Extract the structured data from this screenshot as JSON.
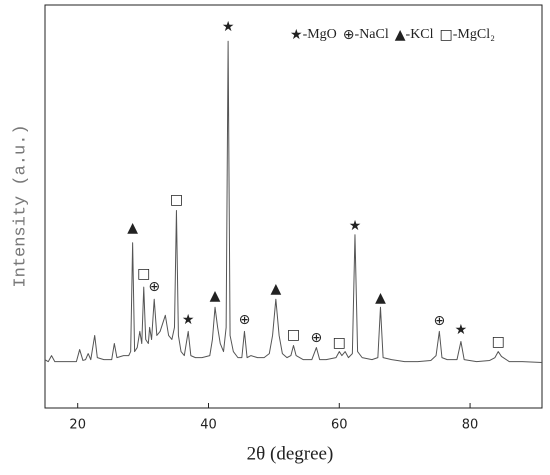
{
  "chart_data": {
    "type": "line",
    "xlabel": "2θ (degree)",
    "ylabel": "Intensity (a.u.)",
    "xlim": [
      15,
      91
    ],
    "ylim": [
      0,
      100
    ],
    "xticks": [
      20,
      40,
      60,
      80
    ],
    "series": [
      {
        "color": "#555555",
        "x": [
          15,
          15.5,
          16,
          16.5,
          18,
          19.8,
          20.3,
          20.8,
          21.2,
          21.6,
          22,
          22.6,
          23,
          24,
          25.2,
          25.6,
          26,
          27,
          27.8,
          28.1,
          28.4,
          28.7,
          29.1,
          29.5,
          29.8,
          30.1,
          30.4,
          30.8,
          31,
          31.3,
          31.7,
          32.1,
          32.6,
          33.4,
          33.9,
          34.4,
          34.8,
          35.1,
          35.4,
          35.8,
          36.3,
          36.9,
          37.3,
          38,
          39,
          40.2,
          40.6,
          41,
          41.4,
          41.8,
          42.3,
          42.7,
          43,
          43.3,
          43.8,
          44.5,
          45.1,
          45.5,
          45.9,
          46.5,
          47.5,
          48.5,
          49.3,
          49.8,
          50.3,
          50.8,
          51.3,
          52,
          52.6,
          53,
          53.4,
          54.5,
          55.8,
          56.5,
          57,
          58,
          59.5,
          60,
          60.4,
          60.9,
          61.4,
          62,
          62.4,
          62.8,
          63.5,
          65,
          65.9,
          66.3,
          66.7,
          68,
          70,
          72,
          74,
          74.8,
          75.3,
          75.7,
          76.5,
          78,
          78.6,
          79.1,
          81,
          83,
          83.8,
          84.3,
          84.8,
          86,
          88,
          91
        ],
        "values": [
          12,
          11.5,
          13,
          11.5,
          11.5,
          11.5,
          14.5,
          11.8,
          12,
          13.5,
          12,
          18,
          12.5,
          12,
          12,
          16,
          12.5,
          13,
          13,
          14,
          41,
          14,
          15,
          19,
          16,
          30,
          17,
          16,
          20,
          17,
          27,
          18,
          19,
          23,
          18,
          17,
          20,
          49,
          18,
          14,
          13,
          19,
          13,
          12.5,
          12.5,
          13,
          17,
          25,
          20,
          16,
          14,
          20,
          91,
          18,
          14,
          12.5,
          12.5,
          19,
          12.5,
          13,
          12.5,
          12.5,
          13.5,
          18,
          27,
          18,
          13.5,
          12.5,
          13,
          15.5,
          13,
          12,
          12,
          15,
          12,
          12,
          12.5,
          14,
          13,
          14,
          12.5,
          13.5,
          43,
          14,
          12.5,
          12,
          12.5,
          25,
          12.5,
          12,
          11.5,
          11.5,
          11.8,
          13,
          19,
          12.5,
          12,
          12,
          16.5,
          12,
          11.5,
          11.8,
          12.5,
          14,
          12.8,
          11.5,
          11.5,
          11.3
        ]
      }
    ],
    "annotations": [
      {
        "text": "▲",
        "x": 28.4,
        "y": 44.7
      },
      {
        "text": "□",
        "x": 30.1,
        "y": 33.3
      },
      {
        "text": "⊕",
        "x": 31.7,
        "y": 30
      },
      {
        "text": "□",
        "x": 35.1,
        "y": 51.6
      },
      {
        "text": "★",
        "x": 36.9,
        "y": 21.8
      },
      {
        "text": "▲",
        "x": 41,
        "y": 27.8
      },
      {
        "text": "★",
        "x": 43,
        "y": 94.5
      },
      {
        "text": "⊕",
        "x": 45.5,
        "y": 21.8
      },
      {
        "text": "▲",
        "x": 50.3,
        "y": 29.5
      },
      {
        "text": "□",
        "x": 53,
        "y": 18.1
      },
      {
        "text": "⊕",
        "x": 56.5,
        "y": 17.4
      },
      {
        "text": "□",
        "x": 60,
        "y": 16.1
      },
      {
        "text": "★",
        "x": 62.4,
        "y": 45.2
      },
      {
        "text": "▲",
        "x": 66.3,
        "y": 27.3
      },
      {
        "text": "⊕",
        "x": 75.3,
        "y": 21.6
      },
      {
        "text": "★",
        "x": 78.6,
        "y": 19.4
      },
      {
        "text": "□",
        "x": 84.3,
        "y": 16.4
      }
    ],
    "legend": [
      {
        "symbol": "★",
        "label": "-MgO"
      },
      {
        "symbol": "⊕",
        "label": "-NaCl"
      },
      {
        "symbol": "▲",
        "label": "-KCl"
      },
      {
        "symbol": "□",
        "label": "-MgCl₂"
      }
    ]
  }
}
